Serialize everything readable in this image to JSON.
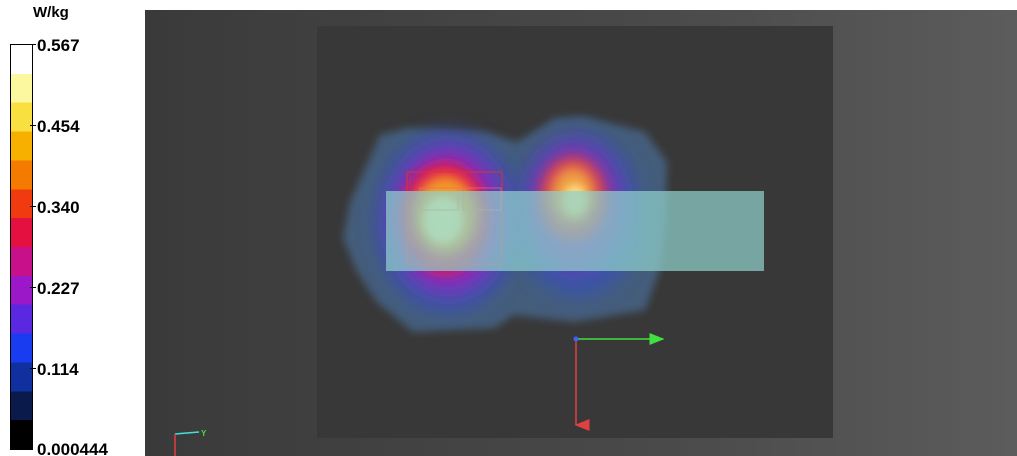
{
  "legend": {
    "unit": "W/kg",
    "ticks": [
      {
        "label": "0.567",
        "value": 0.567
      },
      {
        "label": "0.454",
        "value": 0.454
      },
      {
        "label": "0.340",
        "value": 0.34
      },
      {
        "label": "0.227",
        "value": 0.227
      },
      {
        "label": "0.114",
        "value": 0.114
      },
      {
        "label": "0.000444",
        "value": 0.000444
      }
    ],
    "colors": [
      "#000000",
      "#0a1a4a",
      "#1030a0",
      "#1a3cf0",
      "#5a28e0",
      "#9a18c8",
      "#c8108a",
      "#e41040",
      "#f03a10",
      "#f57a00",
      "#f7b000",
      "#f9e040",
      "#fbf8a0",
      "#ffffff"
    ]
  },
  "viewport": {
    "background_color": "#454545",
    "plate_color": "#3a3a3a",
    "overlay_color": "#8fd0cc",
    "axes": {
      "x_axis_color": "#40e040",
      "y_axis_color": "#e04040",
      "origin_color": "#4060ff",
      "mini_triad_y_label": "Y"
    }
  }
}
